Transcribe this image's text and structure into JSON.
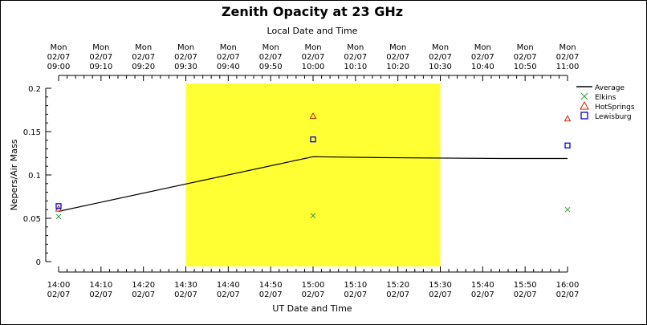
{
  "chart_data": {
    "type": "scatter",
    "title": "Zenith Opacity at 23 GHz",
    "top_axis_label": "Local Date and Time",
    "bottom_axis_label": "UT Date and Time",
    "ylabel": "Nepers/Air Mass",
    "ylim": [
      0,
      0.2
    ],
    "y_ticks": [
      "0",
      "0.05",
      "0.1",
      "0.15",
      "0.2"
    ],
    "x_range_utc": [
      "02/07 14:00",
      "02/07 16:00"
    ],
    "bottom_ticks": [
      {
        "time": "14:00",
        "date": "02/07"
      },
      {
        "time": "14:10",
        "date": "02/07"
      },
      {
        "time": "14:20",
        "date": "02/07"
      },
      {
        "time": "14:30",
        "date": "02/07"
      },
      {
        "time": "14:40",
        "date": "02/07"
      },
      {
        "time": "14:50",
        "date": "02/07"
      },
      {
        "time": "15:00",
        "date": "02/07"
      },
      {
        "time": "15:10",
        "date": "02/07"
      },
      {
        "time": "15:20",
        "date": "02/07"
      },
      {
        "time": "15:30",
        "date": "02/07"
      },
      {
        "time": "15:40",
        "date": "02/07"
      },
      {
        "time": "15:50",
        "date": "02/07"
      },
      {
        "time": "16:00",
        "date": "02/07"
      }
    ],
    "top_ticks": [
      {
        "day": "Mon",
        "date": "02/07",
        "time": "09:00"
      },
      {
        "day": "Mon",
        "date": "02/07",
        "time": "09:10"
      },
      {
        "day": "Mon",
        "date": "02/07",
        "time": "09:20"
      },
      {
        "day": "Mon",
        "date": "02/07",
        "time": "09:30"
      },
      {
        "day": "Mon",
        "date": "02/07",
        "time": "09:40"
      },
      {
        "day": "Mon",
        "date": "02/07",
        "time": "09:50"
      },
      {
        "day": "Mon",
        "date": "02/07",
        "time": "10:00"
      },
      {
        "day": "Mon",
        "date": "02/07",
        "time": "10:10"
      },
      {
        "day": "Mon",
        "date": "02/07",
        "time": "10:20"
      },
      {
        "day": "Mon",
        "date": "02/07",
        "time": "10:30"
      },
      {
        "day": "Mon",
        "date": "02/07",
        "time": "10:40"
      },
      {
        "day": "Mon",
        "date": "02/07",
        "time": "10:50"
      },
      {
        "day": "Mon",
        "date": "02/07",
        "time": "11:00"
      }
    ],
    "highlight": {
      "x_start": "14:30",
      "x_end": "15:30",
      "color": "#ffff33"
    },
    "series": [
      {
        "name": "Average",
        "kind": "line",
        "color": "#000000",
        "points": [
          [
            "14:00",
            0.058
          ],
          [
            "15:00",
            0.121
          ],
          [
            "15:15",
            0.12
          ],
          [
            "15:45",
            0.119
          ],
          [
            "16:00",
            0.119
          ]
        ]
      },
      {
        "name": "Elkins",
        "kind": "marker",
        "marker": "x",
        "color": "#3a9a3a",
        "points": [
          [
            "14:00",
            0.052
          ],
          [
            "15:00",
            0.053
          ],
          [
            "16:00",
            0.06
          ]
        ]
      },
      {
        "name": "HotSprings",
        "kind": "marker",
        "marker": "triangle",
        "color": "#cc2200",
        "points": [
          [
            "14:00",
            0.061
          ],
          [
            "15:00",
            0.168
          ],
          [
            "16:00",
            0.165
          ]
        ]
      },
      {
        "name": "Lewisburg",
        "kind": "marker",
        "marker": "square",
        "color": "#0000cc",
        "points": [
          [
            "14:00",
            0.064
          ],
          [
            "15:00",
            0.141
          ],
          [
            "16:00",
            0.134
          ]
        ]
      }
    ],
    "legend_position": "right"
  }
}
